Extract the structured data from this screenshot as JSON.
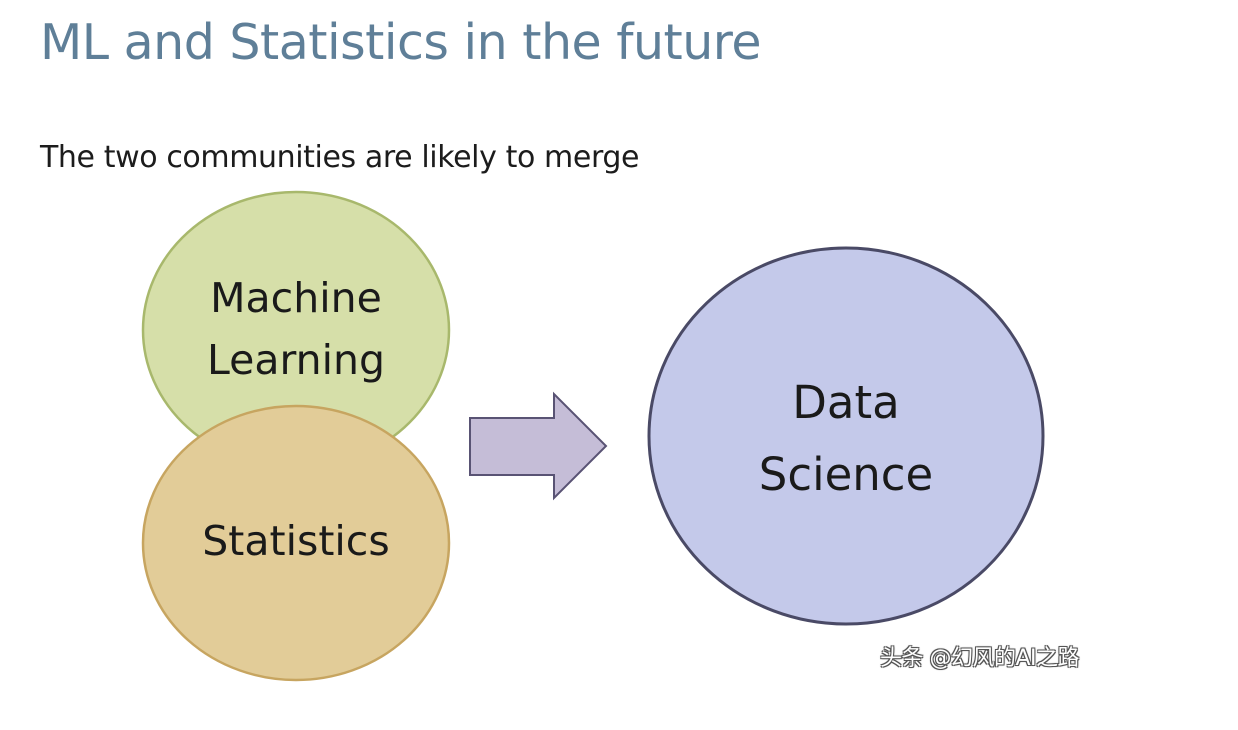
{
  "title": "ML and Statistics in the future",
  "subtitle": "The two communities are likely to merge",
  "circles": {
    "machine_learning": {
      "line1": "Machine",
      "line2": "Learning",
      "fill": "#d6dfa9",
      "stroke": "#a8b86c"
    },
    "statistics": {
      "line1": "Statistics",
      "fill": "#e2cc98",
      "stroke": "#c7a560"
    },
    "data_science": {
      "line1": "Data",
      "line2": "Science",
      "fill": "#c4c9ea",
      "stroke": "#4a4a66"
    }
  },
  "arrow": {
    "fill": "#c5bdd7",
    "stroke": "#595374"
  },
  "watermark": "头条 @幻风的AI之路"
}
